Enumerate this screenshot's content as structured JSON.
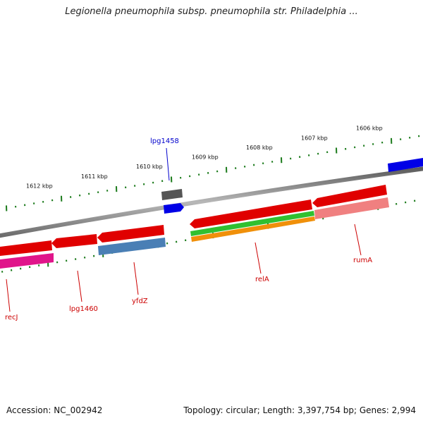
{
  "title": "Legionella pneumophila subsp. pneumophila str. Philadelphia ...",
  "footer": {
    "accession": "Accession: NC_002942",
    "topology": "Topology: circular; Length: 3,397,754 bp; Genes: 2,994"
  },
  "ruler_labels": [
    {
      "text": "1606 kbp",
      "kbp": 1606
    },
    {
      "text": "1607 kbp",
      "kbp": 1607
    },
    {
      "text": "1608 kbp",
      "kbp": 1608
    },
    {
      "text": "1609 kbp",
      "kbp": 1609
    },
    {
      "text": "1610 kbp",
      "kbp": 1610
    },
    {
      "text": "1611 kbp",
      "kbp": 1611
    },
    {
      "text": "1612 kbp",
      "kbp": 1612
    }
  ],
  "gene_labels": [
    {
      "text": "lpg1458",
      "color": "#0000cc"
    },
    {
      "text": "recJ",
      "color": "#cc0000"
    },
    {
      "text": "lpg1460",
      "color": "#cc0000"
    },
    {
      "text": "yfdZ",
      "color": "#cc0000"
    },
    {
      "text": "relA",
      "color": "#cc0000"
    },
    {
      "text": "rumA",
      "color": "#cc0000"
    }
  ],
  "colors": {
    "cds": "#e00000",
    "cds_light": "#f08080",
    "trna": "#0000e6",
    "pseudo": "#555555",
    "mrna_magenta": "#e0158a",
    "mrna_blue": "#4a7fb5",
    "green": "#30c030",
    "orange": "#f0900a",
    "backbone": "#8a8a8a",
    "ruler_tick": "#1a7a1a"
  }
}
